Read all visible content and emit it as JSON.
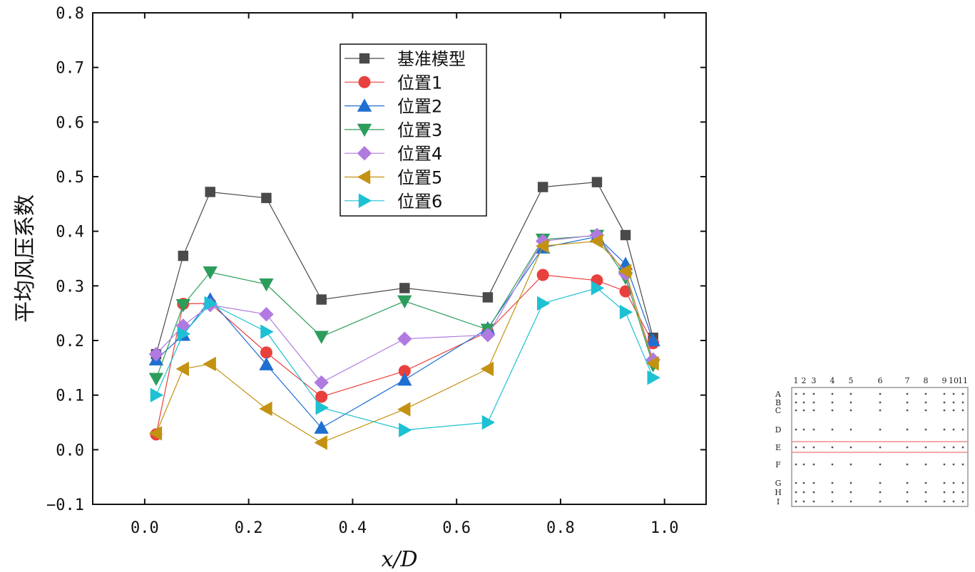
{
  "chart_data": {
    "type": "line",
    "title": "",
    "xlabel": "x/D",
    "ylabel": "平均风压系数",
    "xlim": [
      -0.1,
      1.08
    ],
    "ylim": [
      -0.1,
      0.8
    ],
    "xticks": [
      0.0,
      0.2,
      0.4,
      0.6,
      0.8,
      1.0
    ],
    "xtick_labels": [
      "0.0",
      "0.2",
      "0.4",
      "0.6",
      "0.8",
      "1.0"
    ],
    "yticks": [
      -0.1,
      0.0,
      0.1,
      0.2,
      0.3,
      0.4,
      0.5,
      0.6,
      0.7,
      0.8
    ],
    "ytick_labels": [
      "−0.1",
      "0.0",
      "0.1",
      "0.2",
      "0.3",
      "0.4",
      "0.5",
      "0.6",
      "0.7",
      "0.8"
    ],
    "x": [
      0.022,
      0.074,
      0.126,
      0.234,
      0.34,
      0.5,
      0.66,
      0.766,
      0.87,
      0.925,
      0.978
    ],
    "legend_position": "top-center",
    "series": [
      {
        "name": "基准模型",
        "marker": "square",
        "color": "#4a4a4a",
        "values": [
          0.175,
          0.355,
          0.472,
          0.461,
          0.275,
          0.296,
          0.279,
          0.481,
          0.49,
          0.393,
          0.205
        ]
      },
      {
        "name": "位置1",
        "marker": "circle",
        "color": "#e8413d",
        "values": [
          0.028,
          0.267,
          0.268,
          0.178,
          0.097,
          0.144,
          0.216,
          0.32,
          0.31,
          0.29,
          0.195
        ]
      },
      {
        "name": "位置2",
        "marker": "triangle-up",
        "color": "#1f6fd1",
        "values": [
          0.165,
          0.21,
          0.275,
          0.156,
          0.04,
          0.128,
          0.222,
          0.37,
          0.39,
          0.34,
          0.2
        ]
      },
      {
        "name": "位置3",
        "marker": "triangle-down",
        "color": "#2c9d5b",
        "values": [
          0.13,
          0.265,
          0.325,
          0.303,
          0.207,
          0.272,
          0.22,
          0.385,
          0.392,
          0.315,
          0.155
        ]
      },
      {
        "name": "位置4",
        "marker": "diamond",
        "color": "#b07ae0",
        "values": [
          0.175,
          0.227,
          0.265,
          0.248,
          0.123,
          0.203,
          0.21,
          0.382,
          0.393,
          0.322,
          0.165
        ]
      },
      {
        "name": "位置5",
        "marker": "triangle-left",
        "color": "#c39212",
        "values": [
          0.03,
          0.148,
          0.157,
          0.075,
          0.013,
          0.074,
          0.148,
          0.373,
          0.382,
          0.327,
          0.158
        ]
      },
      {
        "name": "位置6",
        "marker": "triangle-right",
        "color": "#1cc1d3",
        "values": [
          0.1,
          0.212,
          0.268,
          0.216,
          0.077,
          0.036,
          0.05,
          0.268,
          0.296,
          0.252,
          0.132
        ]
      }
    ]
  },
  "inset": {
    "column_labels": [
      "1",
      "2",
      "3",
      "4",
      "5",
      "6",
      "7",
      "8",
      "9",
      "10",
      "11"
    ],
    "row_labels": [
      "A",
      "B",
      "C",
      "D",
      "E",
      "F",
      "G",
      "H",
      "I"
    ],
    "highlight_row": "E",
    "highlight_color": "#f08b8b"
  }
}
